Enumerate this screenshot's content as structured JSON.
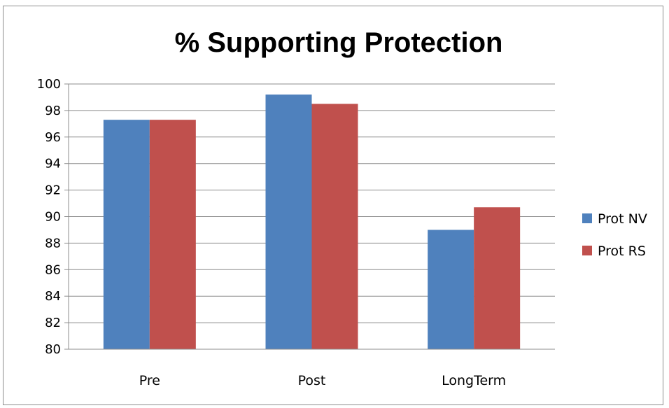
{
  "chart_data": {
    "type": "bar",
    "title": "% Supporting Protection",
    "categories": [
      "Pre",
      "Post",
      "LongTerm"
    ],
    "series": [
      {
        "name": "Prot NV",
        "color": "#4f81bd",
        "values": [
          97.3,
          99.2,
          89.0
        ]
      },
      {
        "name": "Prot RS",
        "color": "#c0504d",
        "values": [
          97.3,
          98.5,
          90.7
        ]
      }
    ],
    "ylim": [
      80,
      100
    ],
    "yticks": [
      "80",
      "82",
      "84",
      "86",
      "88",
      "90",
      "92",
      "94",
      "96",
      "98",
      "100"
    ],
    "grid": true,
    "legend_position": "right"
  }
}
